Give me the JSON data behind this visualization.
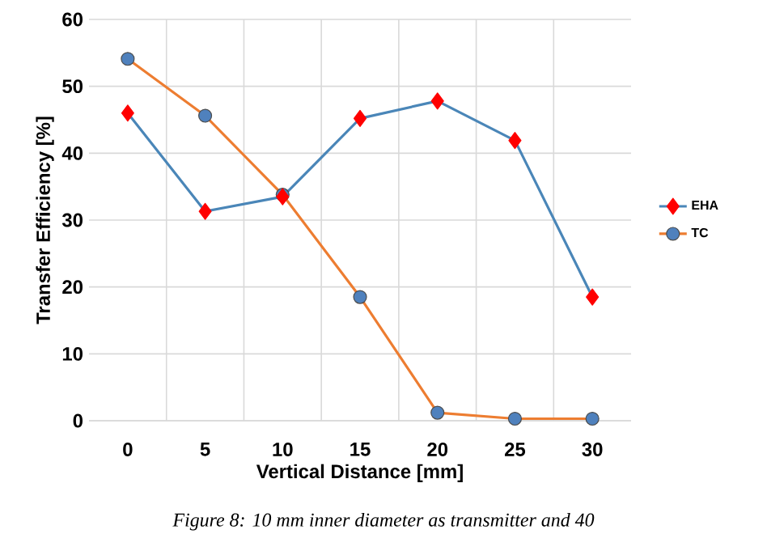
{
  "chart_data": {
    "type": "line",
    "xlabel": "Vertical Distance [mm]",
    "ylabel": "Transfer Efficiency [%]",
    "categories": [
      "0",
      "5",
      "10",
      "15",
      "20",
      "25",
      "30"
    ],
    "series": [
      {
        "name": "EHA",
        "color": "#4a86b8",
        "colors": [
          "#ff0000",
          "#ff0000",
          "#ff0000",
          "#ff0000",
          "#ff0000",
          "#ff0000",
          "#ff0000"
        ],
        "marker": "diamond",
        "values": [
          46,
          31.3,
          33.5,
          45.2,
          47.8,
          41.9,
          18.5
        ]
      },
      {
        "name": "TC",
        "color": "#ed7d31",
        "colors": [
          "#4f81bd",
          "#4f81bd",
          "#4f81bd",
          "#4f81bd",
          "#4f81bd",
          "#4f81bd",
          "#4f81bd"
        ],
        "marker": "circle",
        "values": [
          54.1,
          45.6,
          33.8,
          18.5,
          1.2,
          0.3,
          0.3
        ]
      }
    ],
    "ylim": [
      0,
      60
    ],
    "yticks": [
      0,
      10,
      20,
      30,
      40,
      50,
      60
    ],
    "grid": true,
    "legend": "right",
    "annotations": [
      "Figure 8: 10 mm inner diameter as transmitter and 40"
    ]
  }
}
